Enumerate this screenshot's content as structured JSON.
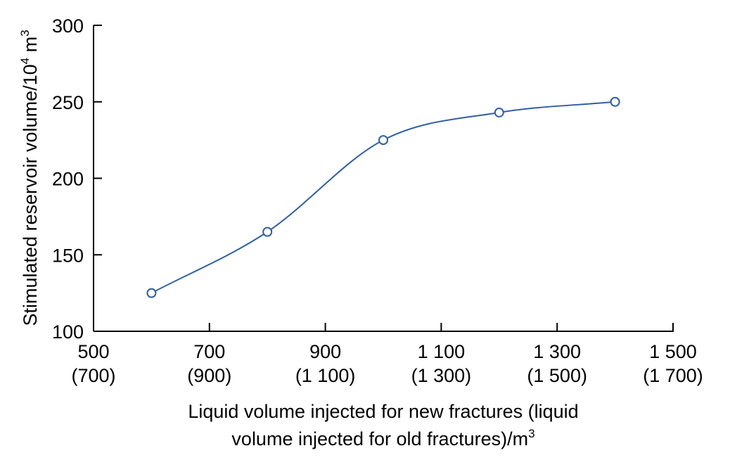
{
  "chart_data": {
    "type": "line",
    "title": "",
    "xlabel": {
      "line1": "Liquid volume injected for new fractures (liquid",
      "line2": "volume injected for old fractures)/m",
      "unit_superscript": "3"
    },
    "ylabel": {
      "text": "Stimulated reservoir volume/10",
      "exponent": "4",
      "unit": " m",
      "unit_superscript": "3"
    },
    "xlim": [
      500,
      1500
    ],
    "ylim": [
      100,
      300
    ],
    "x_ticks": [
      {
        "value": 500,
        "label": "500",
        "sublabel": "(700)"
      },
      {
        "value": 700,
        "label": "700",
        "sublabel": "(900)"
      },
      {
        "value": 900,
        "label": "900",
        "sublabel": "(1 100)"
      },
      {
        "value": 1100,
        "label": "1 100",
        "sublabel": "(1 300)"
      },
      {
        "value": 1300,
        "label": "1 300",
        "sublabel": "(1 500)"
      },
      {
        "value": 1500,
        "label": "1 500",
        "sublabel": "(1 700)"
      }
    ],
    "y_ticks": [
      {
        "value": 100,
        "label": "100"
      },
      {
        "value": 150,
        "label": "150"
      },
      {
        "value": 200,
        "label": "200"
      },
      {
        "value": 250,
        "label": "250"
      },
      {
        "value": 300,
        "label": "300"
      }
    ],
    "grid": false,
    "series": [
      {
        "x": [
          600,
          800,
          1000,
          1200,
          1400
        ],
        "y": [
          125,
          165,
          225,
          243,
          250
        ],
        "color": "#2f5fa7",
        "marker": "open-circle",
        "smooth": true
      }
    ]
  }
}
